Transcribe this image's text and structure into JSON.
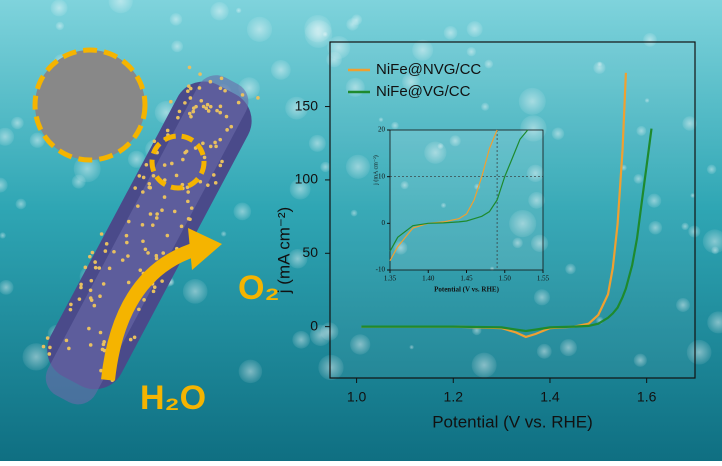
{
  "illustration": {
    "product": "O₂",
    "reactant": "H₂O"
  },
  "chart_data": [
    {
      "type": "line",
      "xlabel": "Potential (V vs. RHE)",
      "ylabel": "j (mA cm⁻²)",
      "xlim": [
        0.945,
        1.7
      ],
      "ylim": [
        -35,
        194
      ],
      "xticks": [
        {
          "value": 1.0,
          "label": "1.0"
        },
        1.2,
        1.4,
        1.6
      ],
      "yticks": [
        0,
        50,
        100,
        150
      ],
      "legend": "upper left",
      "x": [
        1.01,
        1.1,
        1.2,
        1.3,
        1.33,
        1.35,
        1.37,
        1.4,
        1.45,
        1.48,
        1.5,
        1.52,
        1.53,
        1.54,
        1.55,
        1.557,
        1.57,
        1.58,
        1.59,
        1.6,
        1.61
      ],
      "series": [
        {
          "name": "NiFe@NVG/CC",
          "color": "#f0a030",
          "values": [
            0,
            0,
            0,
            -1,
            -4,
            -7,
            -5,
            -1,
            0,
            2,
            8,
            22,
            40,
            70,
            120,
            173,
            null,
            null,
            null,
            null,
            null
          ]
        },
        {
          "name": "NiFe@VG/CC",
          "color": "#1e8a2e",
          "values": [
            0,
            0,
            0,
            -0.5,
            -2,
            -3,
            -2,
            -0.5,
            0,
            0.5,
            2,
            6,
            9,
            13,
            20,
            26,
            42,
            60,
            85,
            110,
            135
          ]
        }
      ]
    },
    {
      "type": "line",
      "xlabel": "Potential (V vs. RHE)",
      "ylabel": "j (mA cm⁻²)",
      "xlim": [
        1.35,
        1.55
      ],
      "ylim": [
        -10,
        20
      ],
      "xticks": [
        1.35,
        {
          "value": 1.4,
          "label": "1.40"
        },
        1.45,
        {
          "value": 1.5,
          "label": "1.50"
        },
        1.55
      ],
      "yticks": [
        -10,
        0,
        10,
        20
      ],
      "guide_x": 1.49,
      "guide_y": 10,
      "x": [
        1.35,
        1.36,
        1.38,
        1.4,
        1.42,
        1.44,
        1.45,
        1.46,
        1.47,
        1.48,
        1.49,
        1.5,
        1.51,
        1.52,
        1.53
      ],
      "series": [
        {
          "color": "#f0a030",
          "values": [
            -8,
            -5,
            -1,
            0,
            0.3,
            1,
            2,
            5,
            10,
            16,
            20,
            null,
            null,
            null,
            null
          ]
        },
        {
          "color": "#1e8a2e",
          "values": [
            -6,
            -3,
            -0.5,
            0,
            0.1,
            0.3,
            0.5,
            1,
            1.5,
            2.5,
            5,
            10,
            14,
            18,
            20
          ]
        }
      ]
    }
  ]
}
